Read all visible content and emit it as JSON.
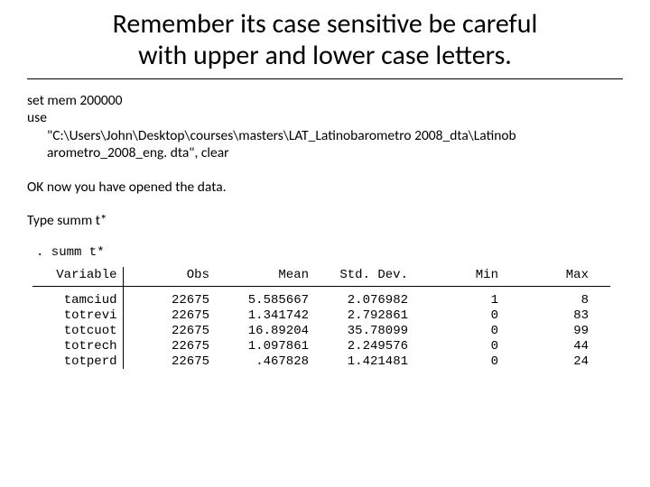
{
  "title_line1": "Remember its case sensitive be careful",
  "title_line2": "with upper and lower case letters.",
  "code": {
    "line1": "set mem 200000",
    "line2": "use",
    "line3a": "\"C:\\Users\\John\\Desktop\\courses\\masters\\LAT_Latinobarometro 2008_dta\\Latinob",
    "line3b": "arometro_2008_eng. dta\", clear"
  },
  "para1": "OK now you have opened the data.",
  "para2": "Type summ t*",
  "stata": {
    "prompt": ". summ t*",
    "headers": {
      "var": "Variable",
      "obs": "Obs",
      "mean": "Mean",
      "std": "Std. Dev.",
      "min": "Min",
      "max": "Max"
    },
    "rows": [
      {
        "var": "tamciud",
        "obs": "22675",
        "mean": "5.585667",
        "std": "2.076982",
        "min": "1",
        "max": "8"
      },
      {
        "var": "totrevi",
        "obs": "22675",
        "mean": "1.341742",
        "std": "2.792861",
        "min": "0",
        "max": "83"
      },
      {
        "var": "totcuot",
        "obs": "22675",
        "mean": "16.89204",
        "std": "35.78099",
        "min": "0",
        "max": "99"
      },
      {
        "var": "totrech",
        "obs": "22675",
        "mean": "1.097861",
        "std": "2.249576",
        "min": "0",
        "max": "44"
      },
      {
        "var": "totperd",
        "obs": "22675",
        "mean": ".467828",
        "std": "1.421481",
        "min": "0",
        "max": "24"
      }
    ]
  }
}
